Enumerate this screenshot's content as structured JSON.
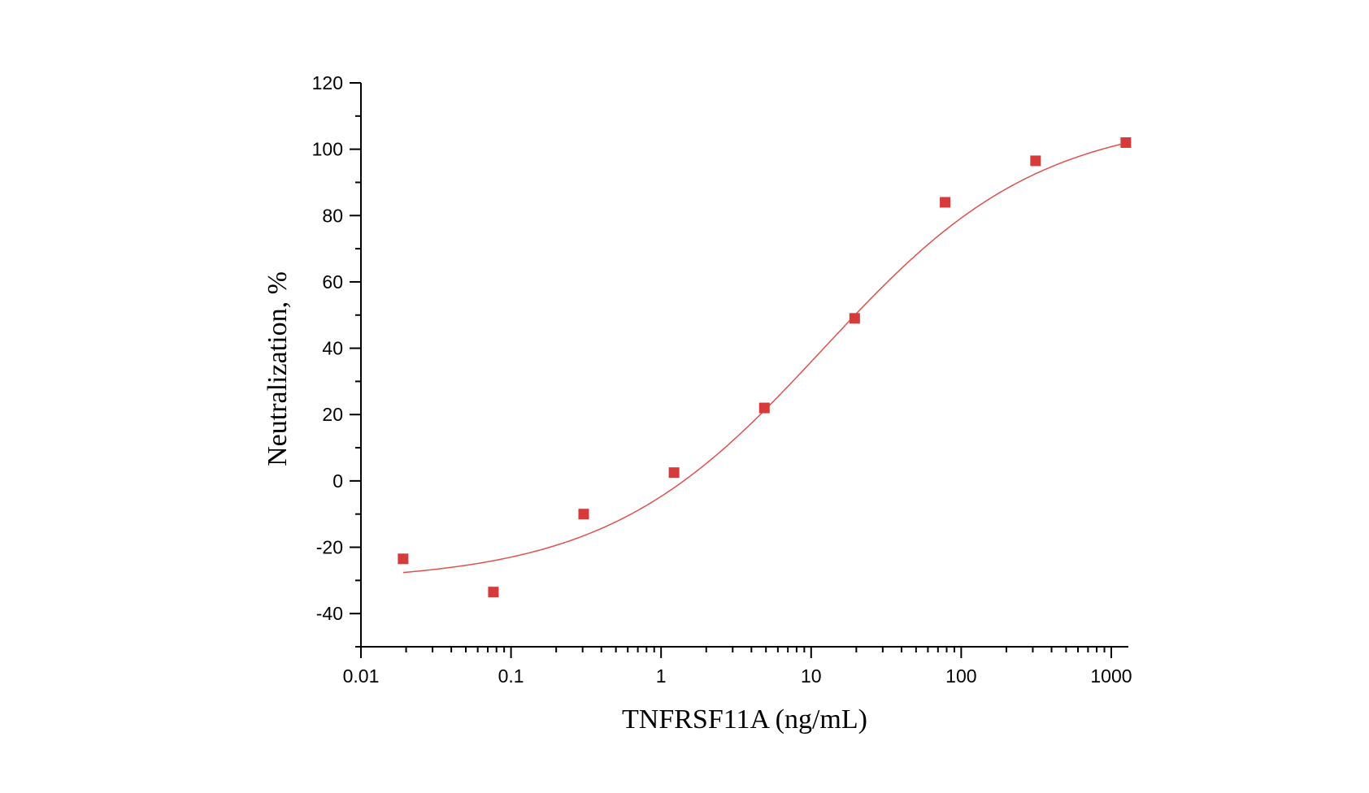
{
  "chart_data": {
    "type": "scatter",
    "xlabel": "TNFRSF11A (ng/mL)",
    "ylabel": "Neutralization, %",
    "x_scale": "log",
    "xlim": [
      0.01,
      1300
    ],
    "ylim": [
      -50,
      120
    ],
    "x_ticks": [
      {
        "value": 0.01,
        "label": "0.01"
      },
      {
        "value": 0.1,
        "label": "0.1"
      },
      {
        "value": 1,
        "label": "1"
      },
      {
        "value": 10,
        "label": "10"
      },
      {
        "value": 100,
        "label": "100"
      },
      {
        "value": 1000,
        "label": "1000"
      }
    ],
    "y_ticks": [
      {
        "value": -40,
        "label": "-40"
      },
      {
        "value": -20,
        "label": "-20"
      },
      {
        "value": 0,
        "label": "0"
      },
      {
        "value": 20,
        "label": "20"
      },
      {
        "value": 40,
        "label": "40"
      },
      {
        "value": 60,
        "label": "60"
      },
      {
        "value": 80,
        "label": "80"
      },
      {
        "value": 100,
        "label": "100"
      },
      {
        "value": 120,
        "label": "120"
      }
    ],
    "grid": false,
    "legend": "none",
    "series": [
      {
        "kind": "points",
        "marker": "square",
        "color": "#d63a3a",
        "x": [
          0.0191,
          0.0763,
          0.305,
          1.22,
          4.88,
          19.5,
          78.1,
          313,
          1250
        ],
        "y": [
          -23.5,
          -33.5,
          -10,
          2.5,
          22,
          49,
          84,
          96.5,
          102
        ]
      },
      {
        "kind": "fit-curve",
        "color": "#e05050",
        "model": "4PL",
        "bottom": -30.5,
        "top": 110,
        "ec50": 12,
        "hill": 0.6,
        "x_range": [
          0.0191,
          1250
        ]
      }
    ]
  }
}
